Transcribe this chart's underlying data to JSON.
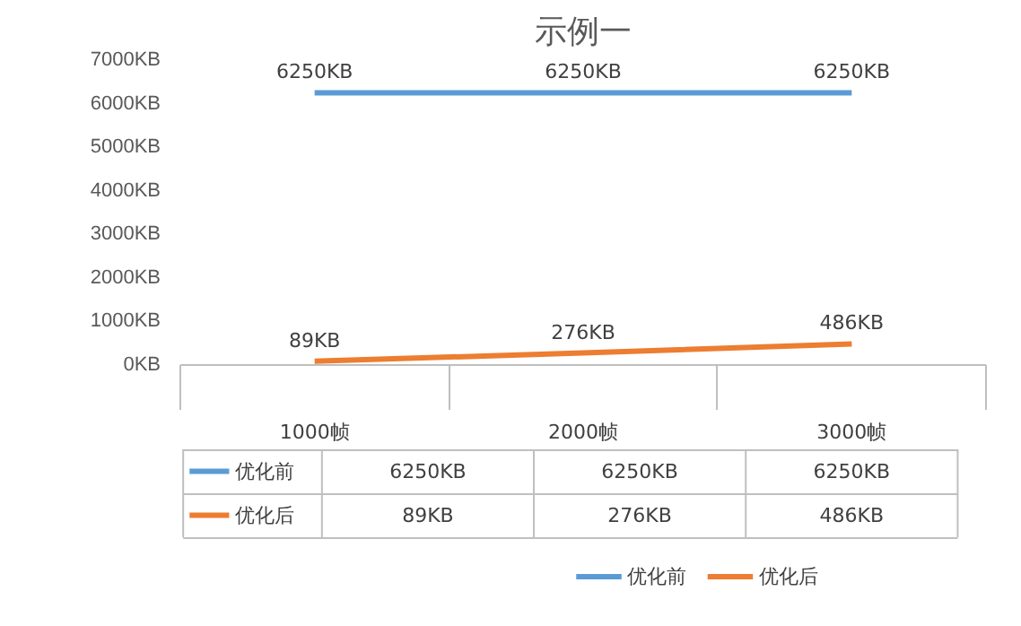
{
  "chart_data": {
    "type": "line",
    "title": "示例一",
    "categories": [
      "1000帧",
      "2000帧",
      "3000帧"
    ],
    "ylim": [
      0,
      7000
    ],
    "yticks": [
      {
        "value": 0,
        "label": "0KB"
      },
      {
        "value": 1000,
        "label": "1000KB"
      },
      {
        "value": 2000,
        "label": "2000KB"
      },
      {
        "value": 3000,
        "label": "3000KB"
      },
      {
        "value": 4000,
        "label": "4000KB"
      },
      {
        "value": 5000,
        "label": "5000KB"
      },
      {
        "value": 6000,
        "label": "6000KB"
      },
      {
        "value": 7000,
        "label": "7000KB"
      }
    ],
    "series": [
      {
        "name": "优化前",
        "color": "#5b9bd5",
        "values": [
          6250,
          6250,
          6250
        ],
        "value_labels": [
          "6250KB",
          "6250KB",
          "6250KB"
        ]
      },
      {
        "name": "优化后",
        "color": "#ed7d31",
        "values": [
          89,
          276,
          486
        ],
        "value_labels": [
          "89KB",
          "276KB",
          "486KB"
        ]
      }
    ],
    "legend": "bottom",
    "marker": "none",
    "line_style": "solid"
  }
}
